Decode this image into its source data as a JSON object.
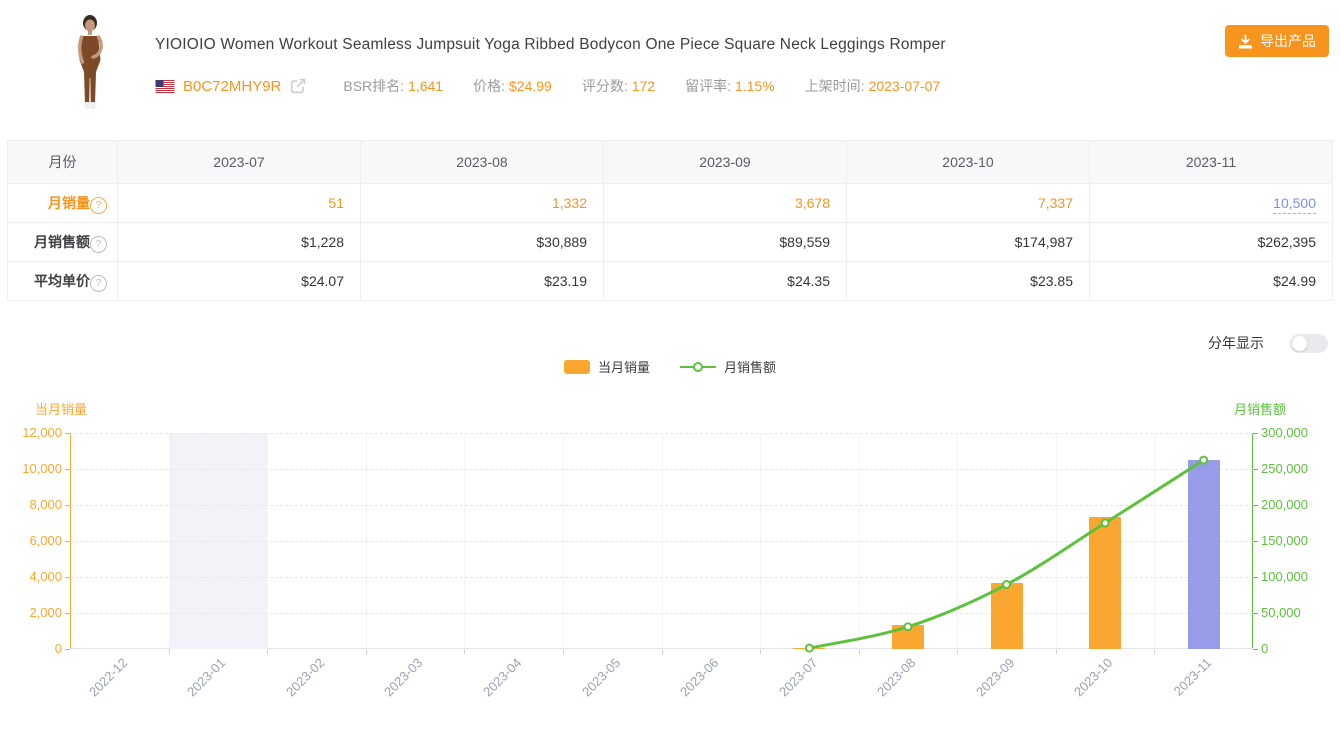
{
  "header": {
    "title": "YIOIOIO Women Workout Seamless Jumpsuit Yoga Ribbed Bodycon One Piece Square Neck Leggings Romper",
    "asin": "B0C72MHY9R",
    "stats": [
      {
        "label": "BSR排名:",
        "value": "1,641"
      },
      {
        "label": "价格:",
        "value": "$24.99"
      },
      {
        "label": "评分数:",
        "value": "172"
      },
      {
        "label": "留评率:",
        "value": "1.15%"
      },
      {
        "label": "上架时间:",
        "value": "2023-07-07"
      }
    ],
    "export_button_label": "导出产品"
  },
  "table": {
    "corner_label": "月份",
    "month_columns": [
      "2023-07",
      "2023-08",
      "2023-09",
      "2023-10",
      "2023-11"
    ],
    "rows": [
      {
        "label": "月销量",
        "has_help": true,
        "value_style": "orange",
        "last_value_style": "blue-link",
        "values": [
          "51",
          "1,332",
          "3,678",
          "7,337",
          "10,500"
        ]
      },
      {
        "label": "月销售额",
        "has_help": true,
        "values": [
          "$1,228",
          "$30,889",
          "$89,559",
          "$174,987",
          "$262,395"
        ]
      },
      {
        "label": "平均单价",
        "has_help": true,
        "values": [
          "$24.07",
          "$23.19",
          "$24.35",
          "$23.85",
          "$24.99"
        ]
      }
    ]
  },
  "controls": {
    "year_toggle_label": "分年显示",
    "year_toggle_state": "off"
  },
  "chart_data": {
    "type": "bar+line",
    "categories": [
      "2022-12",
      "2023-01",
      "2023-02",
      "2023-03",
      "2023-04",
      "2023-05",
      "2023-06",
      "2023-07",
      "2023-08",
      "2023-09",
      "2023-10",
      "2023-11"
    ],
    "series": [
      {
        "name": "当月销量",
        "type": "bar",
        "y_axis": "left",
        "color": "#FAA732",
        "highlight_last_color": "#969CE8",
        "values": [
          null,
          null,
          null,
          null,
          null,
          null,
          null,
          51,
          1332,
          3678,
          7337,
          10500
        ]
      },
      {
        "name": "月销售额",
        "type": "line",
        "y_axis": "right",
        "color": "#5CC13C",
        "marker": "hollow-circle",
        "values": [
          null,
          null,
          null,
          null,
          null,
          null,
          null,
          1228,
          30889,
          89559,
          174987,
          262395
        ]
      }
    ],
    "left_axis": {
      "title": "当月销量",
      "min": 0,
      "max": 12000,
      "tick_step": 2000,
      "color": "#FAA732",
      "tick_labels": [
        "12,000",
        "10,000",
        "8,000",
        "6,000",
        "4,000",
        "2,000",
        "0"
      ]
    },
    "right_axis": {
      "title": "月销售额",
      "min": 0,
      "max": 300000,
      "tick_step": 50000,
      "color": "#5CC13C",
      "tick_labels": [
        "300,000",
        "250,000",
        "200,000",
        "150,000",
        "100,000",
        "50,000",
        "0"
      ]
    },
    "highlighted_category": "2023-01",
    "grid": {
      "horizontal": "dashed",
      "vertical": "light-solid"
    },
    "legend_position": "top-center"
  }
}
